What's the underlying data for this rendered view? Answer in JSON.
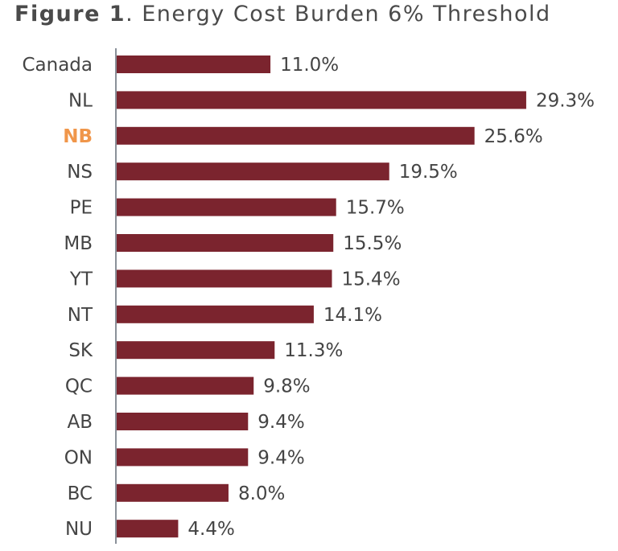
{
  "chart_data": {
    "type": "bar",
    "orientation": "horizontal",
    "title_bold": "Figure 1",
    "title": ". Energy Cost Burden 6% Threshold",
    "categories": [
      "Canada",
      "NL",
      "NB",
      "NS",
      "PE",
      "MB",
      "YT",
      "NT",
      "SK",
      "QC",
      "AB",
      "ON",
      "BC",
      "NU"
    ],
    "values": [
      11.0,
      29.3,
      25.6,
      19.5,
      15.7,
      15.5,
      15.4,
      14.1,
      11.3,
      9.8,
      9.4,
      9.4,
      8.0,
      4.4
    ],
    "value_labels": [
      "11.0%",
      "29.3%",
      "25.6%",
      "19.5%",
      "15.7%",
      "15.5%",
      "15.4%",
      "14.1%",
      "11.3%",
      "9.8%",
      "9.4%",
      "9.4%",
      "8.0%",
      "4.4%"
    ],
    "highlighted_category": "NB",
    "xlim": [
      0,
      30
    ],
    "grid": false,
    "colors": {
      "bar": "#7b242e",
      "highlight_label": "#f0964a",
      "text": "#444444",
      "axis": "#8a9099"
    }
  }
}
